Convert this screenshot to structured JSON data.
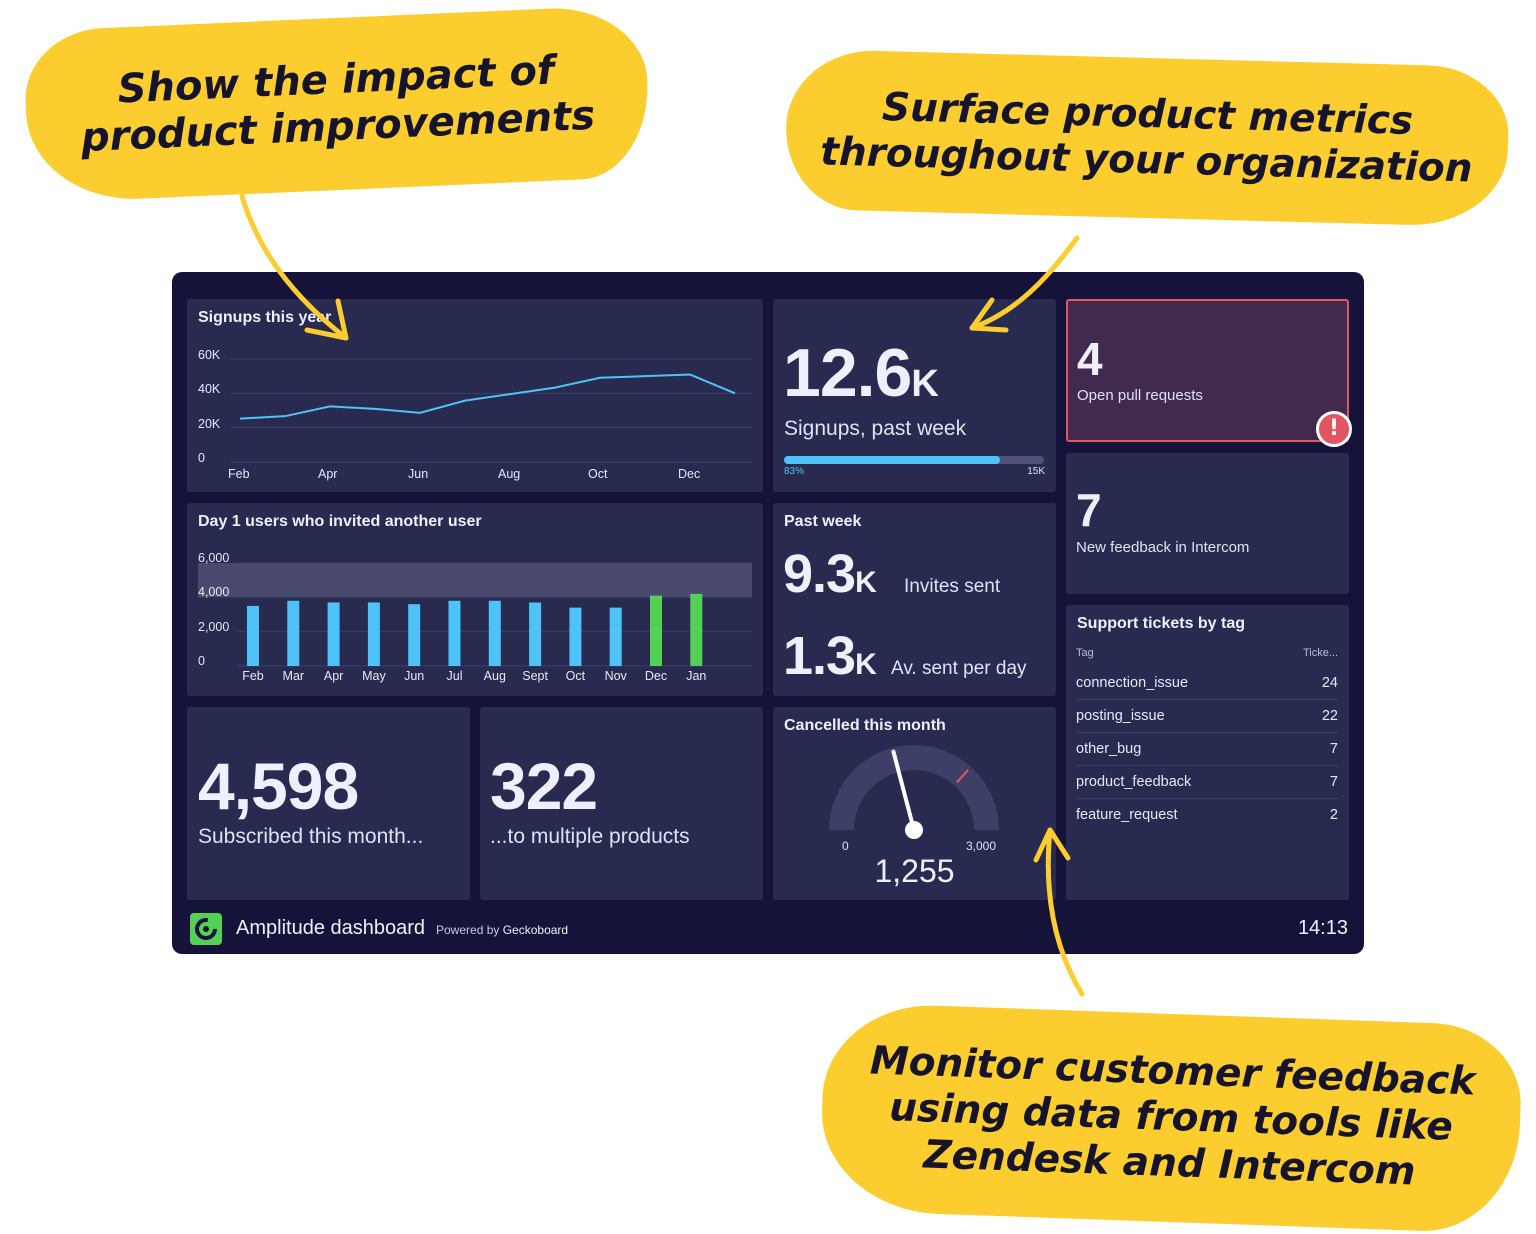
{
  "callouts": {
    "top_left": "Show the impact of\nproduct improvements",
    "top_right": "Surface product metrics\nthroughout your organization",
    "bottom_right": "Monitor customer feedback\nusing data from tools like\nZendesk and Intercom"
  },
  "colors": {
    "callout": "#fbcd2e",
    "dashboard_bg": "#15133a",
    "widget_bg": "#282a50",
    "line": "#4fc3f7",
    "bar": "#4fc3f7",
    "bar_highlight": "#54d155",
    "alert_border": "#e25563",
    "alert_bg": "#422a4e",
    "goal_band": "#4a4a6e"
  },
  "signups_chart": {
    "title": "Signups this year",
    "y_ticks": [
      "60K",
      "40K",
      "20K",
      "0"
    ],
    "x_ticks": [
      "Feb",
      "Apr",
      "Jun",
      "Aug",
      "Oct",
      "Dec"
    ]
  },
  "invites_chart": {
    "title": "Day 1 users who invited another user",
    "y_ticks": [
      "6,000",
      "4,000",
      "2,000",
      "0"
    ]
  },
  "chart_data": [
    {
      "type": "line",
      "title": "Signups this year",
      "x": [
        "Feb",
        "Mar",
        "Apr",
        "May",
        "Jun",
        "Jul",
        "Aug",
        "Sept",
        "Oct",
        "Nov",
        "Dec",
        "Jan"
      ],
      "values": [
        23500,
        25000,
        31000,
        29500,
        27000,
        34500,
        38500,
        42500,
        48500,
        49500,
        50500,
        39000
      ],
      "ylim": [
        0,
        60000
      ],
      "grid": true
    },
    {
      "type": "bar",
      "title": "Day 1 users who invited another user",
      "categories": [
        "Feb",
        "Mar",
        "Apr",
        "May",
        "Jun",
        "Jul",
        "Aug",
        "Sept",
        "Oct",
        "Nov",
        "Dec",
        "Jan"
      ],
      "values": [
        3500,
        3800,
        3700,
        3700,
        3600,
        3800,
        3800,
        3700,
        3400,
        3400,
        4100,
        4200
      ],
      "highlight": [
        "Dec",
        "Jan"
      ],
      "goal_band": [
        4000,
        6000
      ],
      "ylim": [
        0,
        6000
      ],
      "grid": true
    }
  ],
  "signups_week": {
    "value": "12.6",
    "unit": "K",
    "label": "Signups, past week",
    "progress_label": "83%",
    "target_label": "15K",
    "progress": 0.83
  },
  "pull_requests": {
    "value": "4",
    "label": "Open pull requests",
    "alert_icon": "exclamation-icon"
  },
  "intercom": {
    "value": "7",
    "label": "New feedback in Intercom"
  },
  "past_week": {
    "title": "Past week",
    "invites_value": "9.3",
    "invites_unit": "K",
    "invites_label": "Invites sent",
    "avg_value": "1.3",
    "avg_unit": "K",
    "avg_label": "Av. sent per day"
  },
  "support": {
    "title": "Support tickets by tag",
    "col_tag": "Tag",
    "col_tickets": "Ticke...",
    "rows": [
      {
        "tag": "connection_issue",
        "count": "24"
      },
      {
        "tag": "posting_issue",
        "count": "22"
      },
      {
        "tag": "other_bug",
        "count": "7"
      },
      {
        "tag": "product_feedback",
        "count": "7"
      },
      {
        "tag": "feature_request",
        "count": "2"
      }
    ]
  },
  "subscribed": {
    "value": "4,598",
    "label": "Subscribed this month..."
  },
  "multiple": {
    "value": "322",
    "label": "...to multiple products"
  },
  "cancelled": {
    "title": "Cancelled this month",
    "value": "1,255",
    "min_label": "0",
    "max_label": "3,000",
    "gauge_value": 1255,
    "gauge_max": 3000,
    "threshold": 2200
  },
  "footer": {
    "title": "Amplitude dashboard",
    "powered_prefix": "Powered by",
    "powered_brand": "Geckoboard",
    "time": "14:13"
  }
}
